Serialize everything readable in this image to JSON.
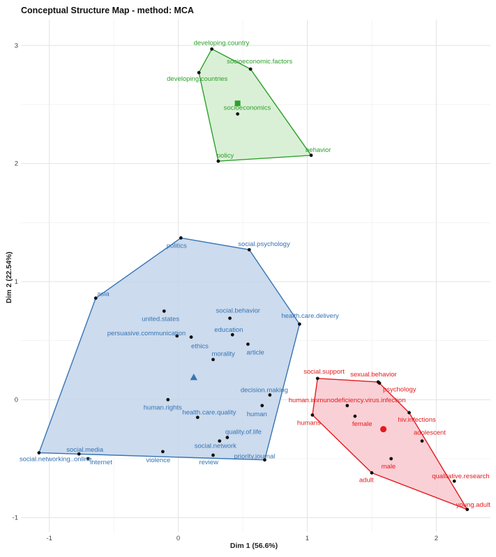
{
  "title": "Conceptual Structure Map - method: MCA",
  "chart_data": {
    "type": "scatter",
    "title": "Conceptual Structure Map - method: MCA",
    "xlabel": "Dim 1 (56.6%)",
    "ylabel": "Dim 2 (22.54%)",
    "xlim": [
      -1.22,
      2.42
    ],
    "ylim": [
      -1.12,
      3.22
    ],
    "x_ticks": [
      -1,
      0,
      1,
      2
    ],
    "y_ticks": [
      -1,
      0,
      1,
      2,
      3
    ],
    "grid": true,
    "clusters": [
      {
        "color": "#3674b5",
        "fill": "#c3d5ea",
        "centroid_marker": "triangle",
        "centroid": {
          "x": 0.12,
          "y": 0.19
        },
        "hull": [
          "politics",
          "social.psychology",
          "health.care.delivery",
          "priority.journal",
          "social.networking..online.",
          "asia"
        ],
        "points": [
          {
            "label": "politics",
            "x": 0.02,
            "y": 1.37
          },
          {
            "label": "social.psychology",
            "x": 0.55,
            "y": 1.27
          },
          {
            "label": "asia",
            "x": -0.64,
            "y": 0.86
          },
          {
            "label": "united.states",
            "x": -0.11,
            "y": 0.75
          },
          {
            "label": "social.behavior",
            "x": 0.4,
            "y": 0.69
          },
          {
            "label": "health.care.delivery",
            "x": 0.94,
            "y": 0.64
          },
          {
            "label": "persuasive.communication",
            "x": -0.01,
            "y": 0.54
          },
          {
            "label": "ethics",
            "x": 0.1,
            "y": 0.53
          },
          {
            "label": "education",
            "x": 0.42,
            "y": 0.55
          },
          {
            "label": "article",
            "x": 0.54,
            "y": 0.47
          },
          {
            "label": "morality",
            "x": 0.27,
            "y": 0.34
          },
          {
            "label": "decision.making",
            "x": 0.71,
            "y": 0.04
          },
          {
            "label": "human.rights",
            "x": -0.08,
            "y": 0.0
          },
          {
            "label": "human",
            "x": 0.65,
            "y": -0.05
          },
          {
            "label": "health.care.quality",
            "x": 0.15,
            "y": -0.15
          },
          {
            "label": "quality.of.life",
            "x": 0.38,
            "y": -0.32
          },
          {
            "label": "social.network",
            "x": 0.32,
            "y": -0.35
          },
          {
            "label": "social.media",
            "x": -0.77,
            "y": -0.46
          },
          {
            "label": "violence",
            "x": -0.12,
            "y": -0.44
          },
          {
            "label": "review",
            "x": 0.27,
            "y": -0.47
          },
          {
            "label": "priority.journal",
            "x": 0.67,
            "y": -0.51
          },
          {
            "label": "internet",
            "x": -0.7,
            "y": -0.5
          },
          {
            "label": "social.networking..online.",
            "x": -1.08,
            "y": -0.45
          }
        ]
      },
      {
        "color": "#2ca02c",
        "fill": "#d4edcf",
        "centroid_marker": "square",
        "centroid": {
          "x": 0.46,
          "y": 2.51
        },
        "hull": [
          "developing.country",
          "socioeconomic.factors",
          "behavior",
          "policy",
          "developing.countries"
        ],
        "points": [
          {
            "label": "developing.country",
            "x": 0.26,
            "y": 2.97
          },
          {
            "label": "socioeconomic.factors",
            "x": 0.56,
            "y": 2.8
          },
          {
            "label": "developing.countries",
            "x": 0.16,
            "y": 2.77
          },
          {
            "label": "socioeconomics",
            "x": 0.46,
            "y": 2.42
          },
          {
            "label": "behavior",
            "x": 1.03,
            "y": 2.07
          },
          {
            "label": "policy",
            "x": 0.31,
            "y": 2.02
          }
        ]
      },
      {
        "color": "#e41a1c",
        "fill": "#f8c8cf",
        "centroid_marker": "circle",
        "centroid": {
          "x": 1.59,
          "y": -0.25
        },
        "hull": [
          "social.support",
          "sexual.behavior",
          "hiv.infections",
          "young.adult",
          "adult",
          "humans"
        ],
        "points": [
          {
            "label": "social.support",
            "x": 1.08,
            "y": 0.18
          },
          {
            "label": "sexual.behavior",
            "x": 1.55,
            "y": 0.15
          },
          {
            "label": "psychology",
            "x": 1.56,
            "y": 0.14
          },
          {
            "label": "human.immunodeficiency.virus.infection",
            "x": 1.31,
            "y": -0.05
          },
          {
            "label": "humans",
            "x": 1.04,
            "y": -0.13
          },
          {
            "label": "female",
            "x": 1.37,
            "y": -0.14
          },
          {
            "label": "hiv.infections",
            "x": 1.79,
            "y": -0.11
          },
          {
            "label": "adolescent",
            "x": 1.89,
            "y": -0.35
          },
          {
            "label": "male",
            "x": 1.65,
            "y": -0.5
          },
          {
            "label": "adult",
            "x": 1.5,
            "y": -0.62
          },
          {
            "label": "qualitative.research",
            "x": 2.14,
            "y": -0.69
          },
          {
            "label": "young.adult",
            "x": 2.24,
            "y": -0.93
          }
        ]
      }
    ]
  }
}
